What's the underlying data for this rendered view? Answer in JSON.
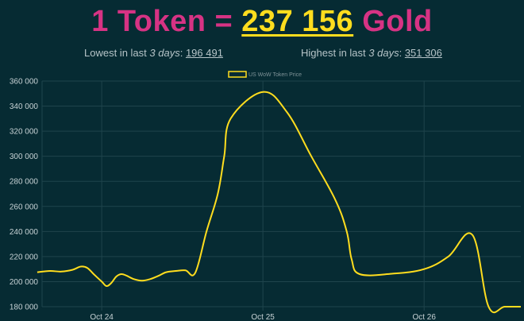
{
  "header": {
    "token_text": "1 Token =",
    "price_text": "237 156",
    "gold_text": "Gold"
  },
  "stats": {
    "lowest_prefix": "Lowest in last",
    "lowest_period": "3 days",
    "lowest_value": "196 491",
    "highest_prefix": "Highest in last",
    "highest_period": "3 days",
    "highest_value": "351 306"
  },
  "colors": {
    "background": "#062b33",
    "title_pink": "#d63384",
    "price_yellow": "#ffdd1e",
    "line": "#ffdd1e",
    "grid": "#1f444c"
  },
  "chart_data": {
    "type": "line",
    "series": [
      {
        "name": "US WoW Token Price",
        "x": [
          23.6,
          23.68,
          23.75,
          23.82,
          23.87,
          23.91,
          23.95,
          24.0,
          24.03,
          24.06,
          24.09,
          24.12,
          24.15,
          24.2,
          24.25,
          24.3,
          24.35,
          24.4,
          24.46,
          24.52,
          24.58,
          24.65,
          24.72,
          24.76,
          24.8,
          25.0,
          25.15,
          25.3,
          25.45,
          25.52,
          25.55,
          25.6,
          25.8,
          26.0,
          26.15,
          26.3,
          26.4,
          26.5,
          26.6
        ],
        "y": [
          207500,
          208500,
          208000,
          209500,
          212000,
          211000,
          206000,
          200000,
          196500,
          199000,
          204000,
          206000,
          205000,
          202000,
          200800,
          202000,
          204500,
          207500,
          208500,
          209000,
          207000,
          240000,
          270000,
          300000,
          330000,
          351300,
          335000,
          300000,
          265000,
          240000,
          218000,
          206000,
          206300,
          210000,
          220000,
          237156,
          180000,
          180000,
          180000
        ]
      }
    ],
    "x_ticks": [
      {
        "x": 24,
        "label": "Oct 24"
      },
      {
        "x": 25,
        "label": "Oct 25"
      },
      {
        "x": 26,
        "label": "Oct 26"
      }
    ],
    "y_ticks": [
      "180 000",
      "200 000",
      "220 000",
      "240 000",
      "260 000",
      "280 000",
      "300 000",
      "320 000",
      "340 000",
      "360 000"
    ],
    "xlim": [
      23.63,
      26.6
    ],
    "ylim": [
      180000,
      360000
    ],
    "legend": "top-center",
    "grid": true
  }
}
